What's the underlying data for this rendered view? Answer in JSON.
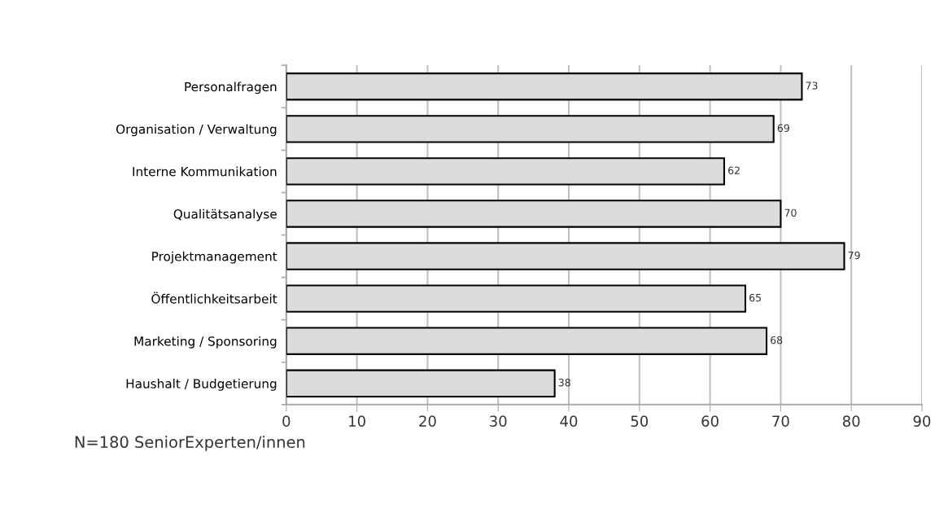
{
  "chart_data": {
    "type": "bar",
    "orientation": "horizontal",
    "categories": [
      "Personalfragen",
      "Organisation / Verwaltung",
      "Interne Kommunikation",
      "Qualitätsanalyse",
      "Projektmanagement",
      "Öffentlichkeitsarbeit",
      "Marketing / Sponsoring",
      "Haushalt / Budgetierung"
    ],
    "values": [
      73,
      69,
      62,
      70,
      79,
      65,
      68,
      38
    ],
    "color": "#dcdcdc",
    "data_labels": true,
    "xlim": [
      0,
      90
    ],
    "xticks": [
      0,
      10,
      20,
      30,
      40,
      50,
      60,
      70,
      80,
      90
    ],
    "grid": "x",
    "annotations": [
      "N=180 SeniorExperten/innen"
    ]
  }
}
